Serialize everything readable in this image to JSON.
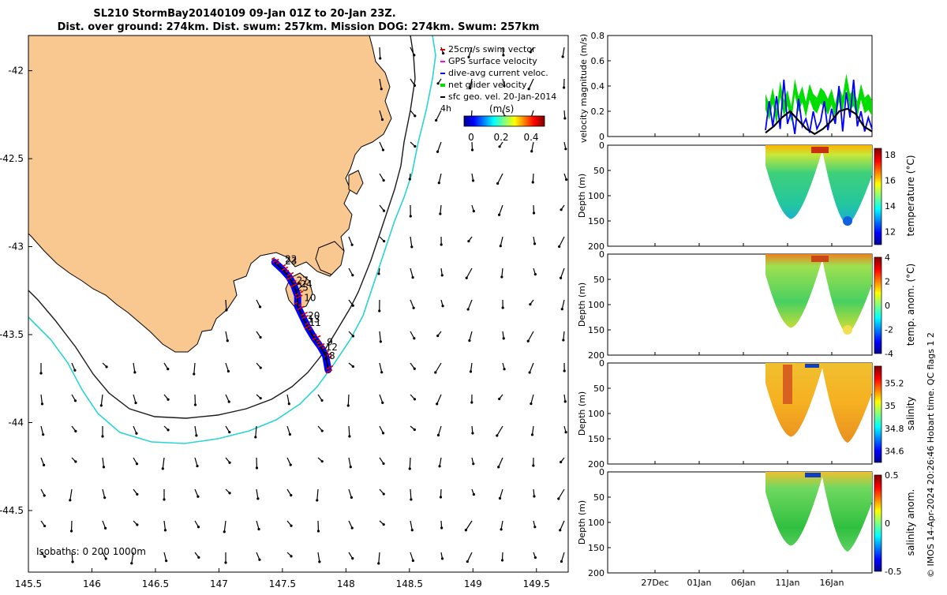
{
  "chart_data": {
    "type": "multi-panel glider mission plot",
    "title_line1": "SL210 StormBay20140109 09-Jan 01Z to 20-Jan 23Z.",
    "title_line2": "Dist. over ground: 274km. Dist. swum: 257km. Mission DOG: 274km. Swum: 257km",
    "footer": "© IMOS 14-Apr-2024 20:26:46 Hobart time. QC flags 1  2",
    "map": {
      "xlim": [
        145.5,
        149.75
      ],
      "ylim": [
        -44.85,
        -41.8
      ],
      "xticks": [
        "145.5",
        "146",
        "146.5",
        "147",
        "147.5",
        "148",
        "148.5",
        "149",
        "149.5"
      ],
      "yticks": [
        "-42",
        "-42.5",
        "-43",
        "-43.5",
        "-44",
        "-44.5"
      ],
      "legend": [
        {
          "label": "25cm/s swim vector",
          "color": "#e00000"
        },
        {
          "label": "GPS surface velocity",
          "color": "#ff00ff"
        },
        {
          "label": "dive-avg current veloc.",
          "color": "#0000ff"
        },
        {
          "label": "net glider velocity",
          "color": "#00dd00"
        },
        {
          "label": "sfc geo. vel. 20-Jan-2014",
          "color": "#000000"
        }
      ],
      "colorbar_title": "(m/s)",
      "colorbar_prefix": "4h",
      "colorbar_ticks": [
        "0",
        "0.2",
        "0.4"
      ],
      "isobaths_label": "Isobaths: 0   200  1000m",
      "track": [
        [
          147.44,
          -43.09
        ],
        [
          147.5,
          -43.13
        ],
        [
          147.55,
          -43.17
        ],
        [
          147.59,
          -43.22
        ],
        [
          147.62,
          -43.28
        ],
        [
          147.62,
          -43.34
        ],
        [
          147.66,
          -43.4
        ],
        [
          147.7,
          -43.46
        ],
        [
          147.75,
          -43.52
        ],
        [
          147.8,
          -43.57
        ],
        [
          147.84,
          -43.62
        ],
        [
          147.86,
          -43.7
        ]
      ],
      "day_labels": [
        {
          "text": "22",
          "lon": 147.52,
          "lat": -43.09
        },
        {
          "text": "23",
          "lon": 147.52,
          "lat": -43.1
        },
        {
          "text": "27",
          "lon": 147.61,
          "lat": -43.21
        },
        {
          "text": "24",
          "lon": 147.64,
          "lat": -43.23
        },
        {
          "text": "25",
          "lon": 147.61,
          "lat": -43.25
        },
        {
          "text": "10",
          "lon": 147.67,
          "lat": -43.31
        },
        {
          "text": "20",
          "lon": 147.7,
          "lat": -43.41
        },
        {
          "text": "13",
          "lon": 147.7,
          "lat": -43.43
        },
        {
          "text": "11",
          "lon": 147.71,
          "lat": -43.45
        },
        {
          "text": "9",
          "lon": 147.85,
          "lat": -43.56
        },
        {
          "text": "12",
          "lon": 147.84,
          "lat": -43.59
        },
        {
          "text": "18",
          "lon": 147.82,
          "lat": -43.64
        }
      ]
    },
    "velocity_panel": {
      "ylabel": "velocity magnitude (m/s)",
      "ylim": [
        0,
        0.8
      ],
      "yticks": [
        "0",
        "0.2",
        "0.4",
        "0.6",
        "0.8"
      ],
      "series": [
        {
          "name": "net glider velocity",
          "color": "#00dd00",
          "values": [
            0.3,
            0.22,
            0.35,
            0.18,
            0.4,
            0.25,
            0.33,
            0.2,
            0.42,
            0.28,
            0.36,
            0.24,
            0.38,
            0.3,
            0.27,
            0.35,
            0.32,
            0.26,
            0.34,
            0.22,
            0.36,
            0.28,
            0.46,
            0.3,
            0.33,
            0.24,
            0.38,
            0.27,
            0.3,
            0.25
          ]
        },
        {
          "name": "dive-avg current veloc.",
          "color": "#0000ff",
          "values": [
            0.05,
            0.28,
            0.08,
            0.32,
            0.06,
            0.45,
            0.1,
            0.2,
            0.02,
            0.3,
            0.08,
            0.14,
            0.03,
            0.2,
            0.06,
            0.12,
            0.28,
            0.05,
            0.22,
            0.1,
            0.4,
            0.04,
            0.35,
            0.15,
            0.45,
            0.08,
            0.2,
            0.04,
            0.15,
            0.06
          ]
        },
        {
          "name": "sfc geo. vel.",
          "color": "#000000",
          "values": [
            0.03,
            0.08,
            0.15,
            0.2,
            0.13,
            0.06,
            0.02,
            0.06,
            0.12,
            0.2,
            0.22,
            0.18,
            0.08,
            0.04
          ]
        }
      ]
    },
    "time_axis": {
      "xticks": [
        "27Dec",
        "01Jan",
        "06Jan",
        "11Jan",
        "16Jan"
      ]
    },
    "profile_panels": [
      {
        "ylabel": "Depth (m)",
        "cbar_label": "temperature (°C)",
        "yticks": [
          "0",
          "50",
          "100",
          "150",
          "200"
        ],
        "cbar_ticks": [
          "12",
          "14",
          "16",
          "18"
        ],
        "clim": [
          11,
          18.5
        ]
      },
      {
        "ylabel": "Depth (m)",
        "cbar_label": "temp. anom. (°C)",
        "yticks": [
          "0",
          "50",
          "100",
          "150",
          "200"
        ],
        "cbar_ticks": [
          "-4",
          "-2",
          "0",
          "2",
          "4"
        ],
        "clim": [
          -4,
          4
        ]
      },
      {
        "ylabel": "Depth (m)",
        "cbar_label": "salinity",
        "yticks": [
          "0",
          "50",
          "100",
          "150",
          "200"
        ],
        "cbar_ticks": [
          "34.6",
          "34.8",
          "35",
          "35.2"
        ],
        "clim": [
          34.5,
          35.35
        ]
      },
      {
        "ylabel": "Depth (m)",
        "cbar_label": "salinity anom.",
        "yticks": [
          "0",
          "50",
          "100",
          "150",
          "200"
        ],
        "cbar_ticks": [
          "-0.5",
          "0",
          "0.5"
        ],
        "clim": [
          -0.5,
          0.5
        ]
      }
    ]
  }
}
